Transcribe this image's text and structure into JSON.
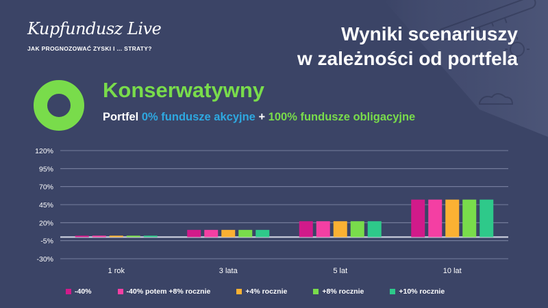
{
  "logo": {
    "text": "Kupfundusz Live",
    "tagline": "JAK PROGNOZOWAĆ ZYSKI I ... STRATY?"
  },
  "header": {
    "title_line1": "Wyniki scenariuszy",
    "title_line2": "w zależności od portfela"
  },
  "portfolio": {
    "name": "Konserwatywny",
    "desc_prefix": "Portfel",
    "desc_part1": "0% fundusze akcyjne",
    "desc_plus": "+",
    "desc_part2": "100% fundusze obligacyjne"
  },
  "colors": {
    "accent_green": "#79dc4b",
    "accent_blue": "#2ea8e0",
    "background": "#3b4466"
  },
  "chart_data": {
    "type": "bar",
    "categories": [
      "1 rok",
      "3 lata",
      "5 lat",
      "10 lat"
    ],
    "ytick_labels": [
      "120%",
      "95%",
      "70%",
      "45%",
      "20%",
      "-5%",
      "-30%"
    ],
    "ylim": [
      -30,
      120
    ],
    "series": [
      {
        "name": "-40%",
        "color": "#d11a8a",
        "values": [
          2,
          10,
          22,
          52
        ]
      },
      {
        "name": "-40% potem +8% rocznie",
        "color": "#f43fa3",
        "values": [
          2,
          10,
          22,
          52
        ]
      },
      {
        "name": "+4% rocznie",
        "color": "#fbb133",
        "values": [
          2,
          10,
          22,
          52
        ]
      },
      {
        "name": "+8% rocznie",
        "color": "#79dc4b",
        "values": [
          2,
          10,
          22,
          52
        ]
      },
      {
        "name": "+10% rocznie",
        "color": "#2ec98a",
        "values": [
          2,
          10,
          22,
          52
        ]
      }
    ],
    "grid": true,
    "legend_position": "bottom"
  }
}
